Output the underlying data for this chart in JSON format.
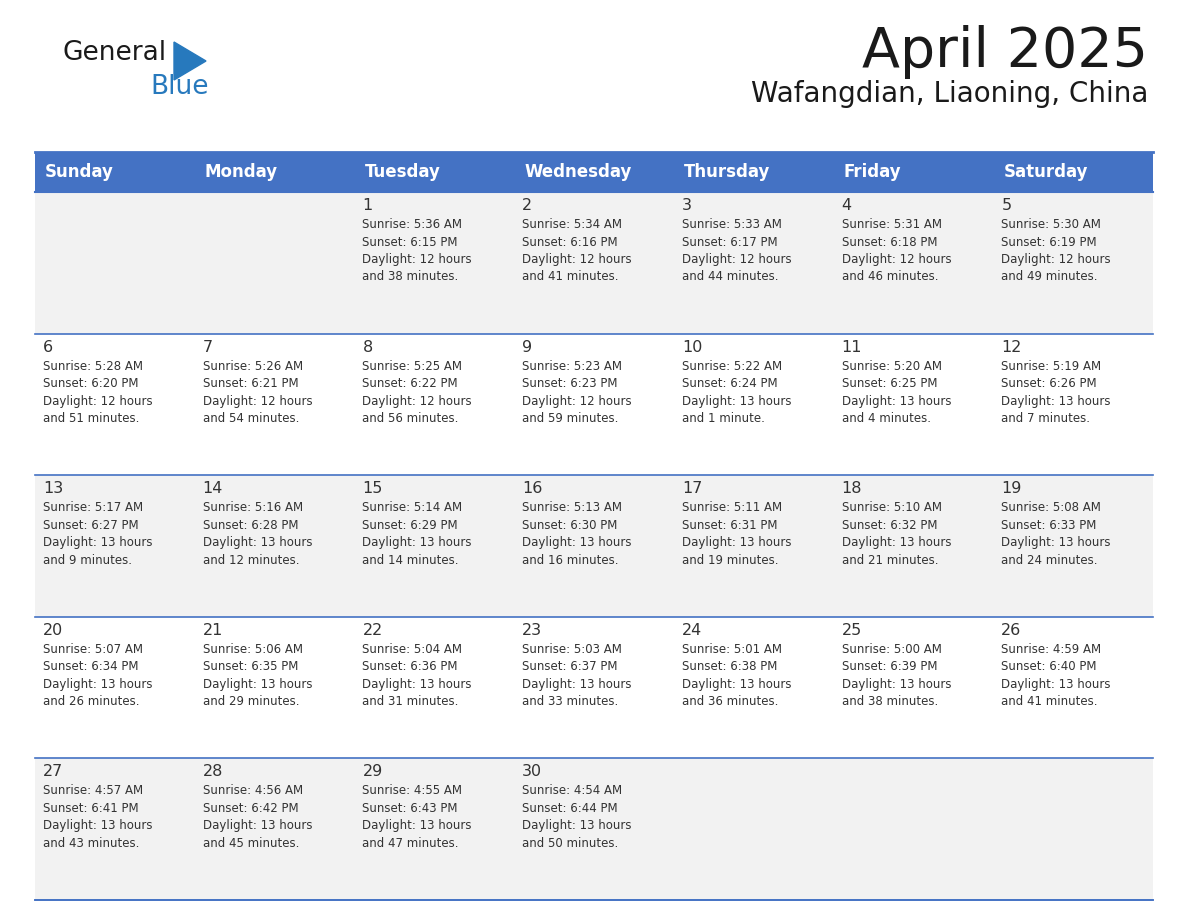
{
  "title": "April 2025",
  "subtitle": "Wafangdian, Liaoning, China",
  "header_bg": "#4472C4",
  "header_text_color": "#FFFFFF",
  "days_of_week": [
    "Sunday",
    "Monday",
    "Tuesday",
    "Wednesday",
    "Thursday",
    "Friday",
    "Saturday"
  ],
  "row_bg_week1": "#F2F2F2",
  "row_bg_week2": "#FFFFFF",
  "row_bg_week3": "#F2F2F2",
  "row_bg_week4": "#FFFFFF",
  "row_bg_week5": "#F2F2F2",
  "cell_border_color": "#4472C4",
  "day_number_color": "#333333",
  "text_color": "#333333",
  "logo_general_color": "#1a1a1a",
  "logo_blue_color": "#2779BD",
  "logo_triangle_color": "#2779BD",
  "weeks": [
    [
      {
        "day": "",
        "info": ""
      },
      {
        "day": "",
        "info": ""
      },
      {
        "day": "1",
        "info": "Sunrise: 5:36 AM\nSunset: 6:15 PM\nDaylight: 12 hours\nand 38 minutes."
      },
      {
        "day": "2",
        "info": "Sunrise: 5:34 AM\nSunset: 6:16 PM\nDaylight: 12 hours\nand 41 minutes."
      },
      {
        "day": "3",
        "info": "Sunrise: 5:33 AM\nSunset: 6:17 PM\nDaylight: 12 hours\nand 44 minutes."
      },
      {
        "day": "4",
        "info": "Sunrise: 5:31 AM\nSunset: 6:18 PM\nDaylight: 12 hours\nand 46 minutes."
      },
      {
        "day": "5",
        "info": "Sunrise: 5:30 AM\nSunset: 6:19 PM\nDaylight: 12 hours\nand 49 minutes."
      }
    ],
    [
      {
        "day": "6",
        "info": "Sunrise: 5:28 AM\nSunset: 6:20 PM\nDaylight: 12 hours\nand 51 minutes."
      },
      {
        "day": "7",
        "info": "Sunrise: 5:26 AM\nSunset: 6:21 PM\nDaylight: 12 hours\nand 54 minutes."
      },
      {
        "day": "8",
        "info": "Sunrise: 5:25 AM\nSunset: 6:22 PM\nDaylight: 12 hours\nand 56 minutes."
      },
      {
        "day": "9",
        "info": "Sunrise: 5:23 AM\nSunset: 6:23 PM\nDaylight: 12 hours\nand 59 minutes."
      },
      {
        "day": "10",
        "info": "Sunrise: 5:22 AM\nSunset: 6:24 PM\nDaylight: 13 hours\nand 1 minute."
      },
      {
        "day": "11",
        "info": "Sunrise: 5:20 AM\nSunset: 6:25 PM\nDaylight: 13 hours\nand 4 minutes."
      },
      {
        "day": "12",
        "info": "Sunrise: 5:19 AM\nSunset: 6:26 PM\nDaylight: 13 hours\nand 7 minutes."
      }
    ],
    [
      {
        "day": "13",
        "info": "Sunrise: 5:17 AM\nSunset: 6:27 PM\nDaylight: 13 hours\nand 9 minutes."
      },
      {
        "day": "14",
        "info": "Sunrise: 5:16 AM\nSunset: 6:28 PM\nDaylight: 13 hours\nand 12 minutes."
      },
      {
        "day": "15",
        "info": "Sunrise: 5:14 AM\nSunset: 6:29 PM\nDaylight: 13 hours\nand 14 minutes."
      },
      {
        "day": "16",
        "info": "Sunrise: 5:13 AM\nSunset: 6:30 PM\nDaylight: 13 hours\nand 16 minutes."
      },
      {
        "day": "17",
        "info": "Sunrise: 5:11 AM\nSunset: 6:31 PM\nDaylight: 13 hours\nand 19 minutes."
      },
      {
        "day": "18",
        "info": "Sunrise: 5:10 AM\nSunset: 6:32 PM\nDaylight: 13 hours\nand 21 minutes."
      },
      {
        "day": "19",
        "info": "Sunrise: 5:08 AM\nSunset: 6:33 PM\nDaylight: 13 hours\nand 24 minutes."
      }
    ],
    [
      {
        "day": "20",
        "info": "Sunrise: 5:07 AM\nSunset: 6:34 PM\nDaylight: 13 hours\nand 26 minutes."
      },
      {
        "day": "21",
        "info": "Sunrise: 5:06 AM\nSunset: 6:35 PM\nDaylight: 13 hours\nand 29 minutes."
      },
      {
        "day": "22",
        "info": "Sunrise: 5:04 AM\nSunset: 6:36 PM\nDaylight: 13 hours\nand 31 minutes."
      },
      {
        "day": "23",
        "info": "Sunrise: 5:03 AM\nSunset: 6:37 PM\nDaylight: 13 hours\nand 33 minutes."
      },
      {
        "day": "24",
        "info": "Sunrise: 5:01 AM\nSunset: 6:38 PM\nDaylight: 13 hours\nand 36 minutes."
      },
      {
        "day": "25",
        "info": "Sunrise: 5:00 AM\nSunset: 6:39 PM\nDaylight: 13 hours\nand 38 minutes."
      },
      {
        "day": "26",
        "info": "Sunrise: 4:59 AM\nSunset: 6:40 PM\nDaylight: 13 hours\nand 41 minutes."
      }
    ],
    [
      {
        "day": "27",
        "info": "Sunrise: 4:57 AM\nSunset: 6:41 PM\nDaylight: 13 hours\nand 43 minutes."
      },
      {
        "day": "28",
        "info": "Sunrise: 4:56 AM\nSunset: 6:42 PM\nDaylight: 13 hours\nand 45 minutes."
      },
      {
        "day": "29",
        "info": "Sunrise: 4:55 AM\nSunset: 6:43 PM\nDaylight: 13 hours\nand 47 minutes."
      },
      {
        "day": "30",
        "info": "Sunrise: 4:54 AM\nSunset: 6:44 PM\nDaylight: 13 hours\nand 50 minutes."
      },
      {
        "day": "",
        "info": ""
      },
      {
        "day": "",
        "info": ""
      },
      {
        "day": "",
        "info": ""
      }
    ]
  ],
  "row_backgrounds": [
    "#F2F2F2",
    "#FFFFFF",
    "#F2F2F2",
    "#FFFFFF",
    "#F2F2F2"
  ]
}
